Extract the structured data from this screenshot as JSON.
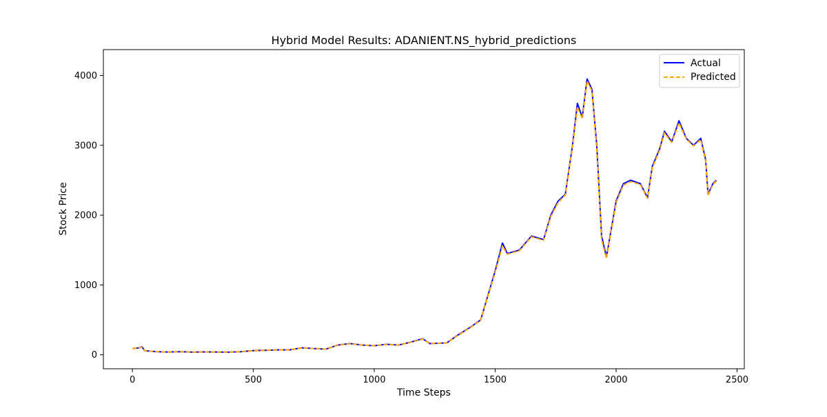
{
  "chart_data": {
    "type": "line",
    "title": "Hybrid Model Results: ADANIENT.NS_hybrid_predictions",
    "xlabel": "Time Steps",
    "ylabel": "Stock Price",
    "xlim": [
      -120,
      2530
    ],
    "ylim": [
      -200,
      4370
    ],
    "xticks": [
      0,
      500,
      1000,
      1500,
      2000,
      2500
    ],
    "yticks": [
      0,
      1000,
      2000,
      3000,
      4000
    ],
    "grid": false,
    "legend_position": "top-right",
    "series": [
      {
        "name": "Actual",
        "color": "#0000ff",
        "style": "solid",
        "points": [
          [
            0,
            90
          ],
          [
            30,
            100
          ],
          [
            40,
            115
          ],
          [
            50,
            60
          ],
          [
            100,
            45
          ],
          [
            150,
            40
          ],
          [
            200,
            45
          ],
          [
            250,
            38
          ],
          [
            300,
            42
          ],
          [
            350,
            40
          ],
          [
            400,
            38
          ],
          [
            450,
            45
          ],
          [
            500,
            60
          ],
          [
            550,
            65
          ],
          [
            600,
            70
          ],
          [
            650,
            70
          ],
          [
            700,
            100
          ],
          [
            750,
            90
          ],
          [
            800,
            80
          ],
          [
            850,
            140
          ],
          [
            900,
            160
          ],
          [
            950,
            140
          ],
          [
            1000,
            130
          ],
          [
            1050,
            150
          ],
          [
            1100,
            140
          ],
          [
            1150,
            180
          ],
          [
            1200,
            230
          ],
          [
            1230,
            160
          ],
          [
            1300,
            170
          ],
          [
            1340,
            270
          ],
          [
            1400,
            400
          ],
          [
            1440,
            500
          ],
          [
            1470,
            850
          ],
          [
            1500,
            1200
          ],
          [
            1530,
            1600
          ],
          [
            1550,
            1450
          ],
          [
            1600,
            1500
          ],
          [
            1650,
            1700
          ],
          [
            1700,
            1650
          ],
          [
            1730,
            2000
          ],
          [
            1760,
            2200
          ],
          [
            1790,
            2300
          ],
          [
            1820,
            3000
          ],
          [
            1840,
            3600
          ],
          [
            1860,
            3400
          ],
          [
            1880,
            3950
          ],
          [
            1900,
            3800
          ],
          [
            1920,
            3000
          ],
          [
            1940,
            1700
          ],
          [
            1960,
            1400
          ],
          [
            1980,
            1800
          ],
          [
            2000,
            2200
          ],
          [
            2030,
            2450
          ],
          [
            2060,
            2500
          ],
          [
            2100,
            2450
          ],
          [
            2130,
            2250
          ],
          [
            2150,
            2700
          ],
          [
            2180,
            2950
          ],
          [
            2200,
            3200
          ],
          [
            2230,
            3050
          ],
          [
            2260,
            3350
          ],
          [
            2290,
            3100
          ],
          [
            2320,
            3000
          ],
          [
            2350,
            3100
          ],
          [
            2370,
            2800
          ],
          [
            2380,
            2300
          ],
          [
            2400,
            2450
          ],
          [
            2415,
            2500
          ]
        ]
      },
      {
        "name": "Predicted",
        "color": "#ffa500",
        "style": "dashed",
        "points": [
          [
            0,
            90
          ],
          [
            30,
            100
          ],
          [
            40,
            110
          ],
          [
            50,
            60
          ],
          [
            100,
            45
          ],
          [
            150,
            40
          ],
          [
            200,
            45
          ],
          [
            250,
            38
          ],
          [
            300,
            42
          ],
          [
            350,
            40
          ],
          [
            400,
            38
          ],
          [
            450,
            45
          ],
          [
            500,
            58
          ],
          [
            550,
            65
          ],
          [
            600,
            70
          ],
          [
            650,
            70
          ],
          [
            700,
            98
          ],
          [
            750,
            90
          ],
          [
            800,
            80
          ],
          [
            850,
            138
          ],
          [
            900,
            158
          ],
          [
            950,
            140
          ],
          [
            1000,
            130
          ],
          [
            1050,
            148
          ],
          [
            1100,
            140
          ],
          [
            1150,
            178
          ],
          [
            1200,
            225
          ],
          [
            1230,
            160
          ],
          [
            1300,
            170
          ],
          [
            1340,
            265
          ],
          [
            1400,
            395
          ],
          [
            1440,
            495
          ],
          [
            1470,
            840
          ],
          [
            1500,
            1180
          ],
          [
            1530,
            1560
          ],
          [
            1550,
            1440
          ],
          [
            1600,
            1490
          ],
          [
            1650,
            1690
          ],
          [
            1700,
            1640
          ],
          [
            1730,
            1980
          ],
          [
            1760,
            2180
          ],
          [
            1790,
            2290
          ],
          [
            1820,
            2980
          ],
          [
            1840,
            3550
          ],
          [
            1860,
            3380
          ],
          [
            1880,
            3920
          ],
          [
            1900,
            3780
          ],
          [
            1920,
            2950
          ],
          [
            1940,
            1650
          ],
          [
            1960,
            1380
          ],
          [
            1980,
            1780
          ],
          [
            2000,
            2180
          ],
          [
            2030,
            2430
          ],
          [
            2060,
            2480
          ],
          [
            2100,
            2440
          ],
          [
            2130,
            2240
          ],
          [
            2150,
            2680
          ],
          [
            2180,
            2930
          ],
          [
            2200,
            3180
          ],
          [
            2230,
            3040
          ],
          [
            2260,
            3320
          ],
          [
            2290,
            3090
          ],
          [
            2320,
            2990
          ],
          [
            2350,
            3080
          ],
          [
            2370,
            2780
          ],
          [
            2380,
            2280
          ],
          [
            2400,
            2440
          ],
          [
            2415,
            2490
          ]
        ]
      }
    ]
  }
}
